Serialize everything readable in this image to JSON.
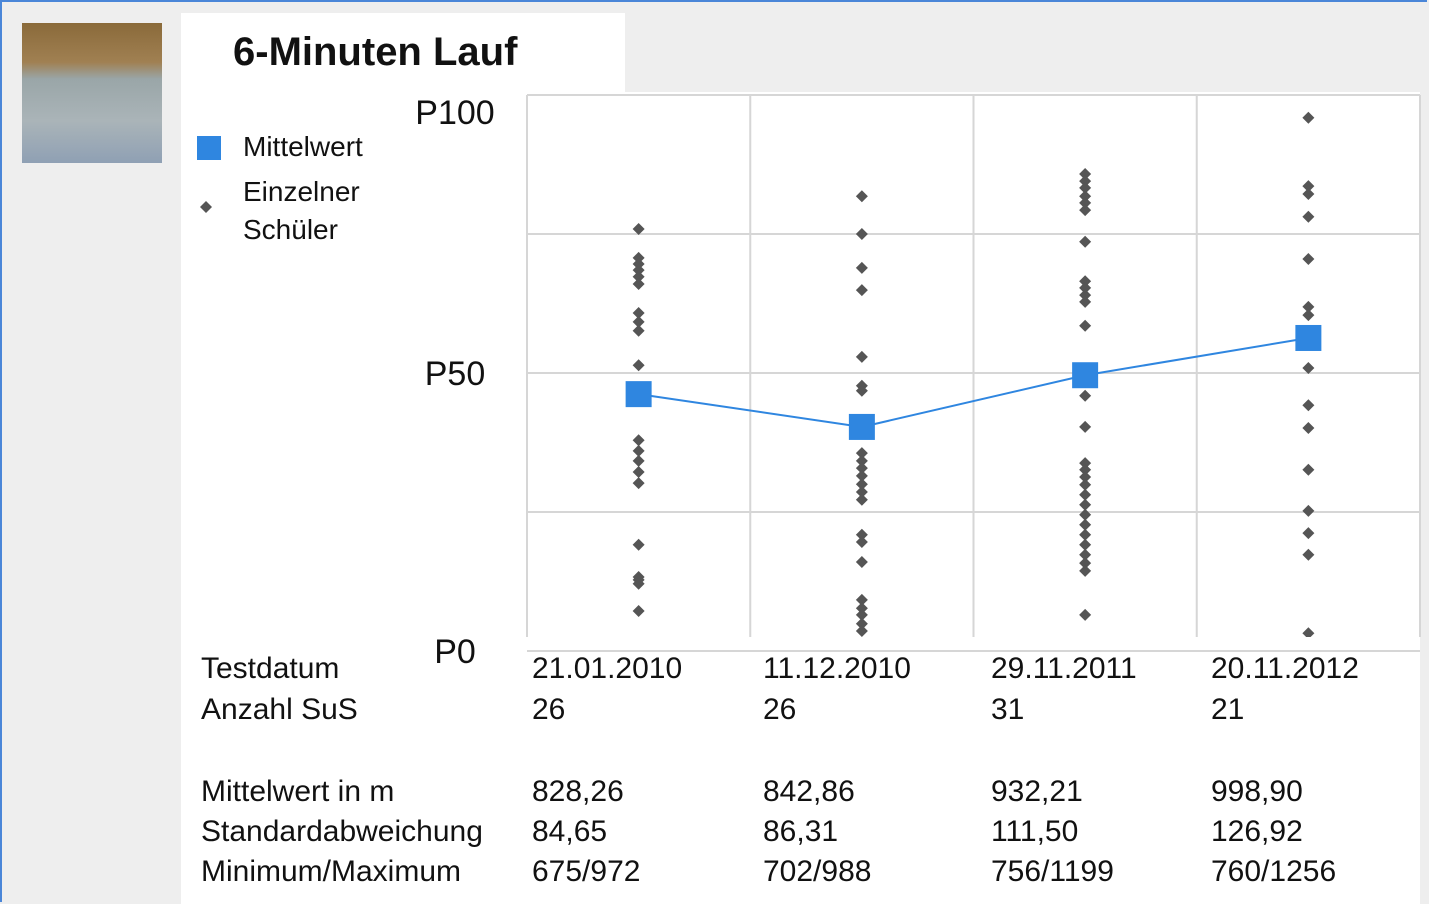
{
  "chart_data": {
    "type": "line",
    "title": "6-Minuten Lauf",
    "categories": [
      "21.01.2010",
      "11.12.2010",
      "29.11.2011",
      "20.11.2012"
    ],
    "ylim": [
      0,
      100
    ],
    "yticks": [
      {
        "value": 0,
        "label": "P0"
      },
      {
        "value": 50,
        "label": "P50"
      },
      {
        "value": 100,
        "label": "P100"
      }
    ],
    "minor_yticks": [
      25,
      75
    ],
    "grid": true,
    "series": [
      {
        "name": "Mittelwert",
        "color": "#2f86e0",
        "values": [
          46.2,
          40.3,
          49.6,
          56.3
        ]
      },
      {
        "name": "Einzelner Schüler",
        "color": "#555555",
        "values": [
          [
            75.9,
            70.7,
            69.6,
            68.5,
            67.3,
            66.0,
            60.8,
            59.2,
            57.6,
            51.4,
            37.9,
            36.0,
            34.2,
            32.2,
            30.2,
            19.1,
            13.3,
            12.8,
            12.1,
            7.2
          ],
          [
            81.8,
            75.0,
            68.9,
            64.9,
            52.9,
            47.7,
            46.8,
            35.6,
            34.2,
            32.9,
            31.5,
            30.0,
            28.6,
            27.2,
            20.9,
            19.6,
            16.0,
            9.2,
            7.7,
            6.5,
            4.9,
            3.6
          ],
          [
            85.8,
            84.5,
            83.3,
            81.8,
            80.6,
            79.3,
            73.6,
            66.5,
            65.3,
            64.0,
            62.8,
            58.5,
            45.9,
            40.3,
            33.8,
            32.6,
            31.3,
            29.9,
            28.1,
            26.3,
            24.5,
            22.7,
            20.9,
            19.1,
            17.3,
            15.8,
            14.4,
            6.5
          ],
          [
            95.9,
            83.6,
            82.2,
            78.1,
            70.5,
            61.9,
            60.4,
            50.9,
            44.2,
            40.1,
            32.6,
            25.2,
            21.2,
            17.3,
            3.2
          ]
        ]
      }
    ]
  },
  "table": {
    "row_labels": [
      "Testdatum",
      "Anzahl SuS",
      "Mittelwert in m",
      "Standardabweichung",
      "Minimum/Maximum"
    ],
    "rows": [
      [
        "26",
        "26",
        "31",
        "21"
      ],
      [
        "828,26",
        "842,86",
        "932,21",
        "998,90"
      ],
      [
        "84,65",
        "86,31",
        "111,50",
        "126,92"
      ],
      [
        "675/972",
        "702/988",
        "756/1199",
        "760/1256"
      ]
    ]
  }
}
